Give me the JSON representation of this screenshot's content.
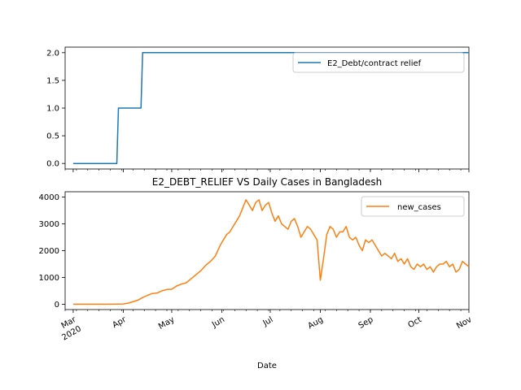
{
  "chart_data": [
    {
      "type": "line",
      "title": "",
      "xlabel": "",
      "ylabel": "",
      "ylim": [
        -0.1,
        2.1
      ],
      "yticks": [
        0.0,
        0.5,
        1.0,
        1.5,
        2.0
      ],
      "ytick_labels": [
        "0.0",
        "0.5",
        "1.0",
        "1.5",
        "2.0"
      ],
      "grid": false,
      "legend": "top-right",
      "series": [
        {
          "name": "E2_Debt/contract relief",
          "color": "#1f77b4",
          "x": [
            "2020-03-01",
            "2020-03-28",
            "2020-03-29",
            "2020-04-12",
            "2020-04-13",
            "2020-11-01"
          ],
          "y": [
            0,
            0,
            1,
            1,
            2,
            2
          ]
        }
      ]
    },
    {
      "type": "line",
      "title": "E2_DEBT_RELIEF VS Daily Cases in Bangladesh",
      "xlabel": "Date",
      "ylabel": "",
      "ylim": [
        -200,
        4200
      ],
      "yticks": [
        0,
        1000,
        2000,
        3000,
        4000
      ],
      "ytick_labels": [
        "0",
        "1000",
        "2000",
        "3000",
        "4000"
      ],
      "grid": false,
      "legend": "top-right",
      "series": [
        {
          "name": "new_cases",
          "color": "#ff7f0e",
          "x": [
            "2020-03-01",
            "2020-03-08",
            "2020-03-15",
            "2020-03-22",
            "2020-03-29",
            "2020-04-01",
            "2020-04-04",
            "2020-04-07",
            "2020-04-10",
            "2020-04-13",
            "2020-04-16",
            "2020-04-19",
            "2020-04-22",
            "2020-04-25",
            "2020-04-28",
            "2020-05-01",
            "2020-05-04",
            "2020-05-07",
            "2020-05-10",
            "2020-05-13",
            "2020-05-16",
            "2020-05-19",
            "2020-05-22",
            "2020-05-25",
            "2020-05-28",
            "2020-05-31",
            "2020-06-02",
            "2020-06-04",
            "2020-06-06",
            "2020-06-08",
            "2020-06-10",
            "2020-06-12",
            "2020-06-14",
            "2020-06-16",
            "2020-06-18",
            "2020-06-20",
            "2020-06-22",
            "2020-06-24",
            "2020-06-26",
            "2020-06-28",
            "2020-06-30",
            "2020-07-02",
            "2020-07-04",
            "2020-07-06",
            "2020-07-08",
            "2020-07-10",
            "2020-07-12",
            "2020-07-14",
            "2020-07-16",
            "2020-07-18",
            "2020-07-20",
            "2020-07-22",
            "2020-07-24",
            "2020-07-26",
            "2020-07-28",
            "2020-07-30",
            "2020-08-01",
            "2020-08-03",
            "2020-08-05",
            "2020-08-07",
            "2020-08-09",
            "2020-08-11",
            "2020-08-13",
            "2020-08-15",
            "2020-08-17",
            "2020-08-19",
            "2020-08-21",
            "2020-08-23",
            "2020-08-25",
            "2020-08-27",
            "2020-08-29",
            "2020-08-31",
            "2020-09-02",
            "2020-09-04",
            "2020-09-06",
            "2020-09-08",
            "2020-09-10",
            "2020-09-12",
            "2020-09-14",
            "2020-09-16",
            "2020-09-18",
            "2020-09-20",
            "2020-09-22",
            "2020-09-24",
            "2020-09-26",
            "2020-09-28",
            "2020-09-30",
            "2020-10-02",
            "2020-10-04",
            "2020-10-06",
            "2020-10-08",
            "2020-10-10",
            "2020-10-12",
            "2020-10-14",
            "2020-10-16",
            "2020-10-18",
            "2020-10-20",
            "2020-10-22",
            "2020-10-24",
            "2020-10-26",
            "2020-10-28",
            "2020-10-30",
            "2020-11-01"
          ],
          "y": [
            0,
            0,
            0,
            0,
            5,
            10,
            40,
            90,
            150,
            250,
            330,
            400,
            420,
            500,
            550,
            560,
            680,
            750,
            800,
            950,
            1100,
            1250,
            1450,
            1600,
            1800,
            2200,
            2400,
            2600,
            2700,
            2900,
            3100,
            3300,
            3600,
            3900,
            3700,
            3500,
            3800,
            3900,
            3500,
            3700,
            3800,
            3400,
            3100,
            3300,
            3000,
            2900,
            2800,
            3100,
            3200,
            2900,
            2500,
            2700,
            2900,
            2800,
            2600,
            2400,
            900,
            1700,
            2600,
            2900,
            2800,
            2500,
            2700,
            2700,
            2900,
            2500,
            2400,
            2500,
            2200,
            2000,
            2400,
            2300,
            2400,
            2200,
            2000,
            1800,
            1900,
            1800,
            1700,
            1900,
            1600,
            1700,
            1500,
            1700,
            1400,
            1300,
            1500,
            1400,
            1500,
            1300,
            1400,
            1200,
            1400,
            1500,
            1500,
            1600,
            1400,
            1500,
            1200,
            1300,
            1600,
            1500,
            1400
          ]
        }
      ]
    }
  ],
  "shared_x": {
    "range": [
      "2020-02-25",
      "2020-11-01"
    ],
    "tick_dates": [
      "2020-03-01",
      "2020-04-01",
      "2020-05-01",
      "2020-06-01",
      "2020-07-01",
      "2020-08-01",
      "2020-09-01",
      "2020-10-01",
      "2020-11-01"
    ],
    "tick_labels": [
      "Mar\n2020",
      "Apr",
      "May",
      "Jun",
      "Jul",
      "Aug",
      "Sep",
      "Oct",
      "Nov"
    ]
  }
}
